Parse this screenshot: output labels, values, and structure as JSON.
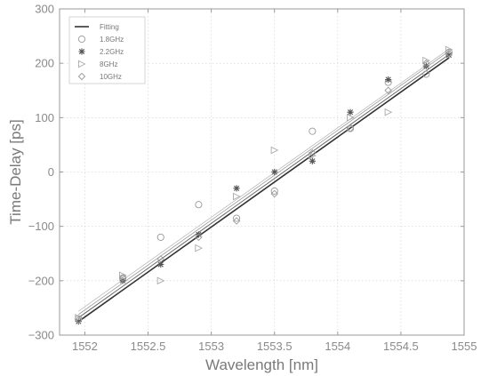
{
  "chart_data": {
    "type": "scatter",
    "title": "",
    "xlabel": "Wavelength [nm]",
    "ylabel": "Time-Delay [ps]",
    "xlim": [
      1551.8,
      1555.0
    ],
    "ylim": [
      -300,
      300
    ],
    "x_ticks": [
      1552,
      1552.5,
      1553,
      1553.5,
      1554,
      1554.5,
      1555
    ],
    "x_tick_labels": [
      "1552",
      "1552.5",
      "1553",
      "1553.5",
      "1554",
      "1554.5",
      "1555"
    ],
    "y_ticks": [
      -300,
      -200,
      -100,
      0,
      100,
      200,
      300
    ],
    "y_tick_labels": [
      "−300",
      "−200",
      "−100",
      "0",
      "100",
      "200",
      "300"
    ],
    "grid": true,
    "legend_position": "top-left",
    "legend": [
      {
        "label": "Fitting",
        "marker": "line"
      },
      {
        "label": "1.8GHz",
        "marker": "circle"
      },
      {
        "label": "2.2GHz",
        "marker": "star"
      },
      {
        "label": "8GHz",
        "marker": "triangle"
      },
      {
        "label": "10GHz",
        "marker": "diamond"
      }
    ],
    "fit_lines": [
      {
        "x": [
          1551.95,
          1554.88
        ],
        "y": [
          -275,
          210
        ],
        "color": "#333333",
        "width": 1.6
      },
      {
        "x": [
          1551.95,
          1554.88
        ],
        "y": [
          -268,
          216
        ],
        "color": "#666666",
        "width": 1.0
      },
      {
        "x": [
          1551.95,
          1554.88
        ],
        "y": [
          -262,
          222
        ],
        "color": "#999999",
        "width": 0.8
      },
      {
        "x": [
          1551.95,
          1554.88
        ],
        "y": [
          -256,
          226
        ],
        "color": "#bbbbbb",
        "width": 0.8
      }
    ],
    "series": [
      {
        "name": "1.8GHz",
        "marker": "circle",
        "color": "#999999",
        "x": [
          1551.95,
          1552.3,
          1552.6,
          1552.9,
          1553.2,
          1553.5,
          1553.8,
          1554.1,
          1554.4,
          1554.7,
          1554.88
        ],
        "y": [
          -270,
          -195,
          -120,
          -60,
          -85,
          -35,
          75,
          80,
          165,
          180,
          220
        ]
      },
      {
        "name": "2.2GHz",
        "marker": "star",
        "color": "#555555",
        "x": [
          1551.95,
          1552.3,
          1552.6,
          1552.9,
          1553.2,
          1553.5,
          1553.8,
          1554.1,
          1554.4,
          1554.7,
          1554.88
        ],
        "y": [
          -275,
          -200,
          -170,
          -115,
          -30,
          0,
          20,
          110,
          170,
          195,
          215
        ]
      },
      {
        "name": "8GHz",
        "marker": "triangle",
        "color": "#aaaaaa",
        "x": [
          1551.95,
          1552.3,
          1552.6,
          1552.9,
          1553.2,
          1553.5,
          1553.8,
          1554.1,
          1554.4,
          1554.7,
          1554.88
        ],
        "y": [
          -268,
          -190,
          -200,
          -140,
          -45,
          40,
          30,
          100,
          110,
          205,
          225
        ]
      },
      {
        "name": "10GHz",
        "marker": "diamond",
        "color": "#999999",
        "x": [
          1551.95,
          1552.3,
          1552.6,
          1552.9,
          1553.2,
          1553.5,
          1553.8,
          1554.1,
          1554.4,
          1554.7,
          1554.88
        ],
        "y": [
          -272,
          -195,
          -160,
          -120,
          -90,
          -40,
          35,
          80,
          150,
          200,
          218
        ]
      }
    ]
  }
}
